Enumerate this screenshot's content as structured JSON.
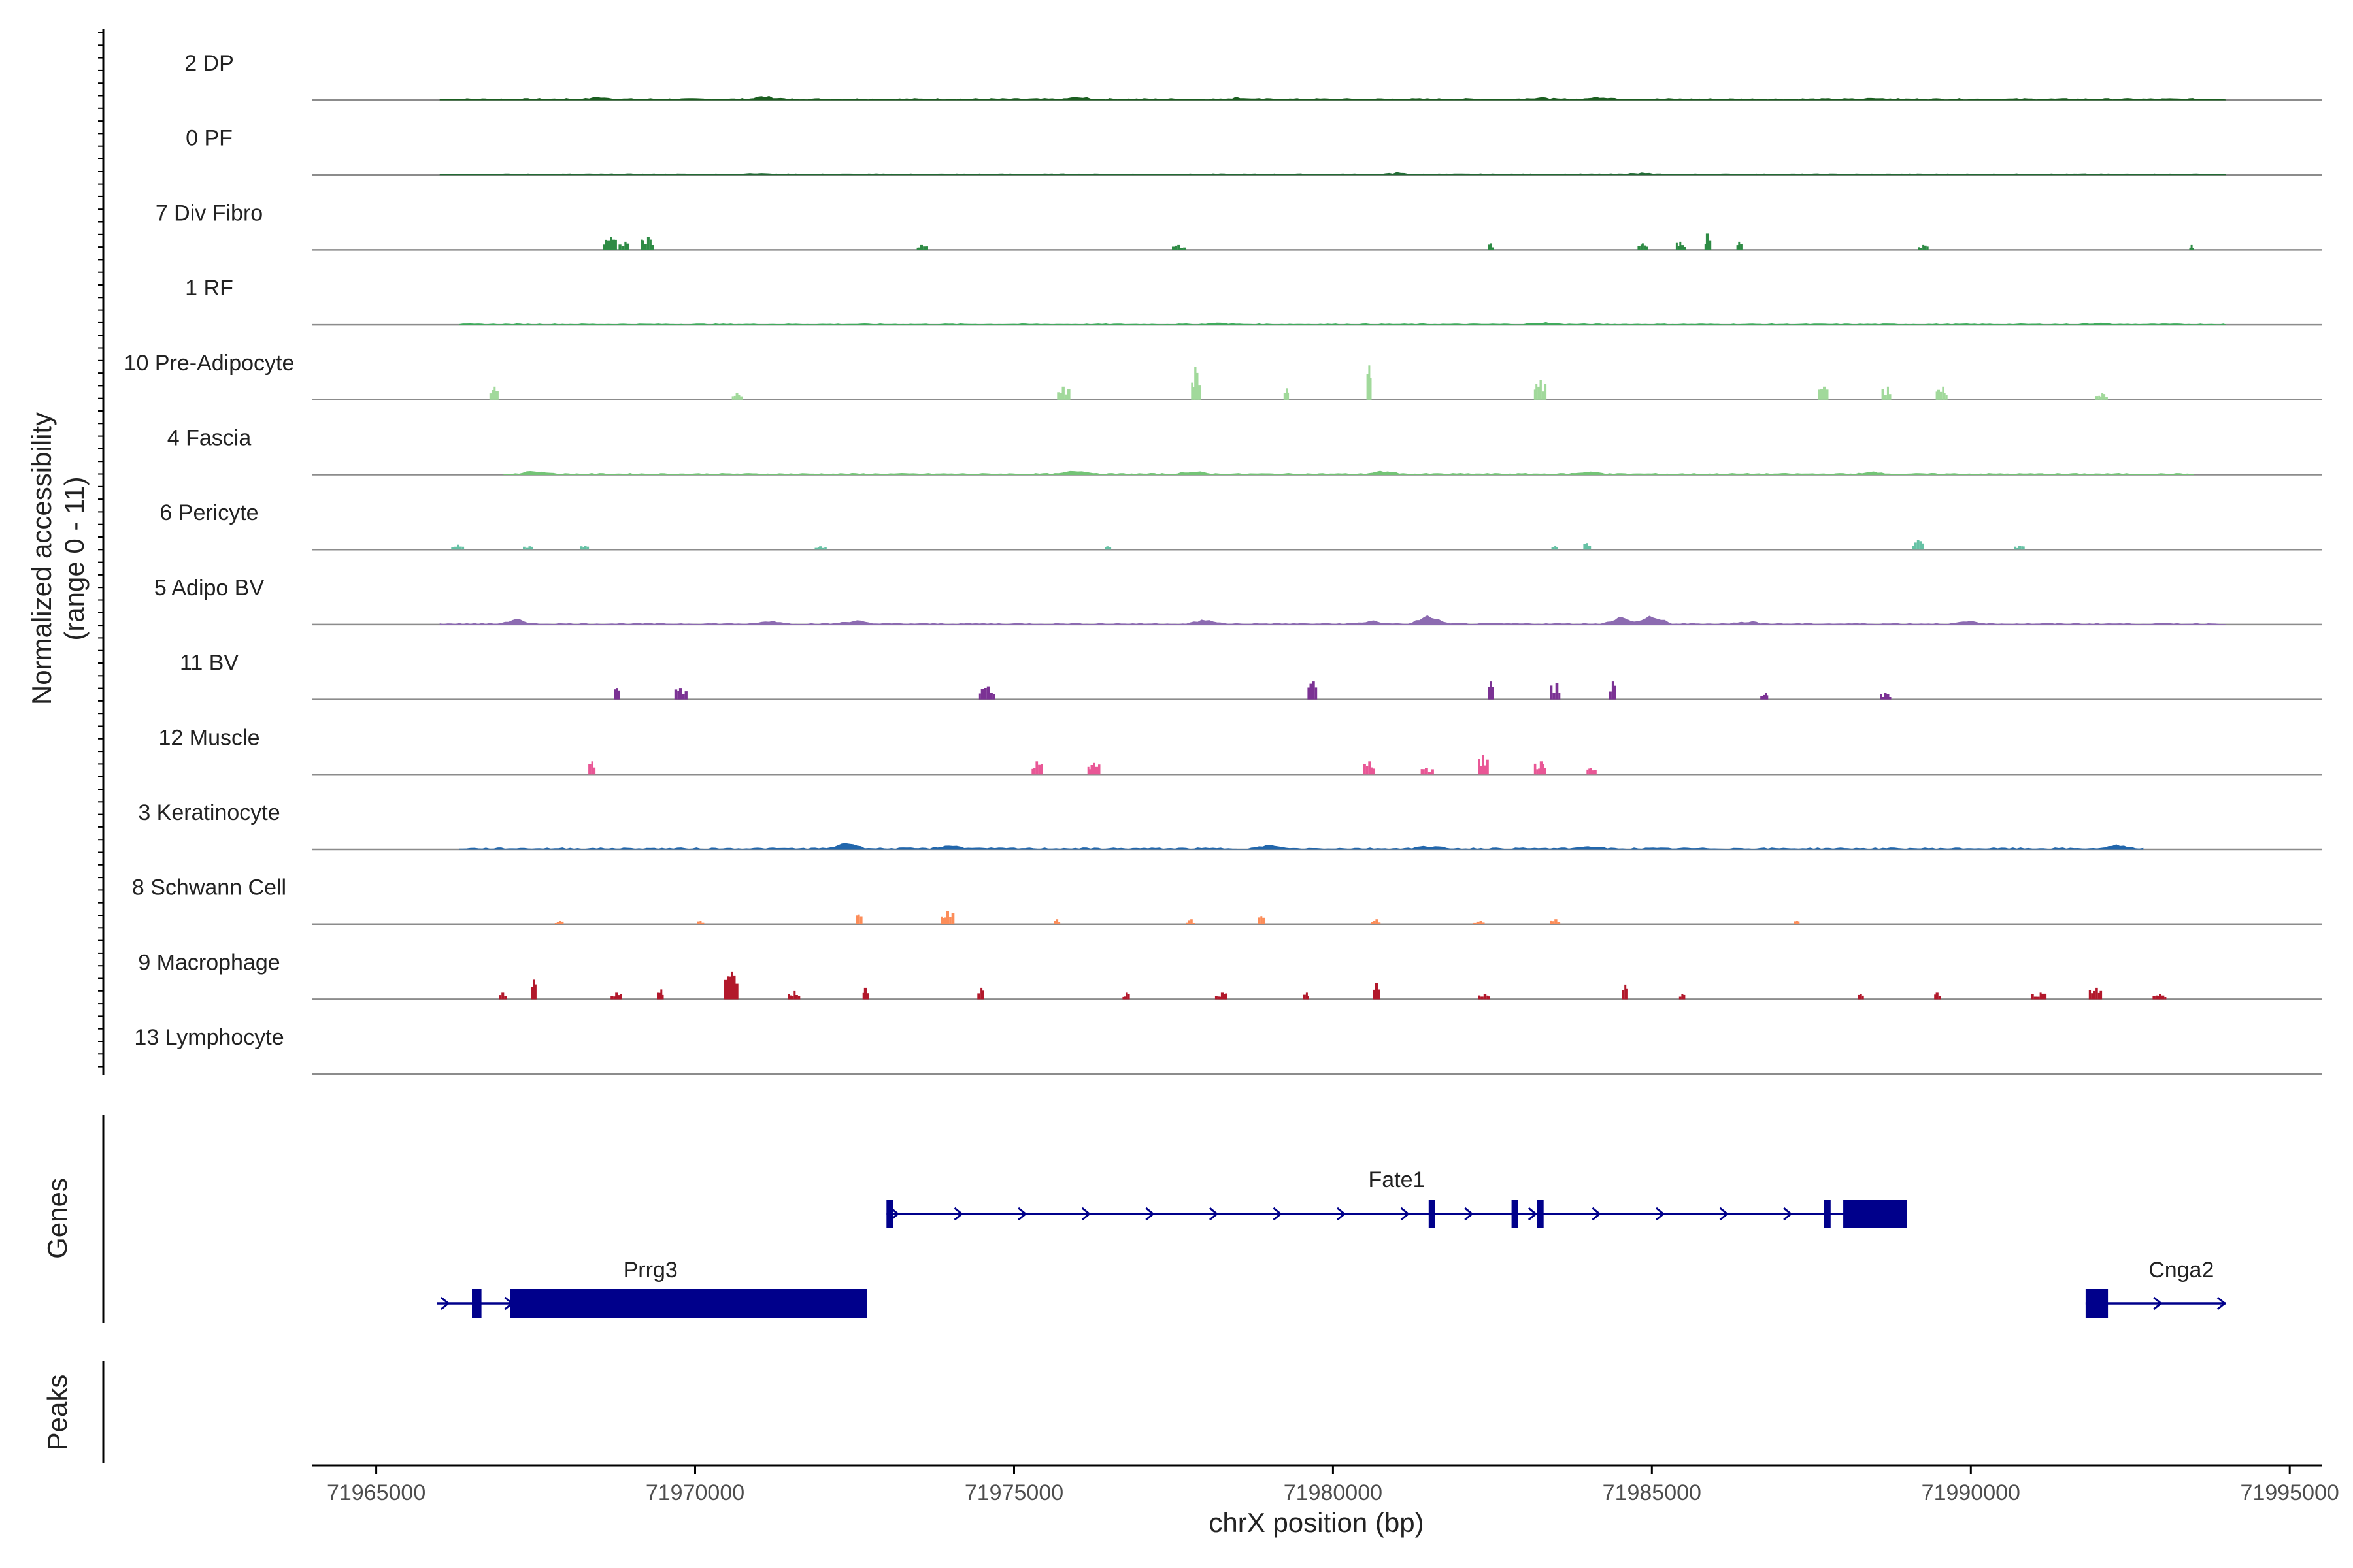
{
  "chart_data": {
    "type": "coverage",
    "y_axis_label_line1": "Normalized accessibility",
    "y_axis_label_line2": "(range 0 - 11)",
    "ylim": [
      0,
      11
    ],
    "x_axis_label": "chrX position (bp)",
    "xlim": [
      71964000,
      71995500
    ],
    "x_ticks": [
      71965000,
      71970000,
      71975000,
      71980000,
      71985000,
      71990000,
      71995000
    ],
    "x_tick_labels": [
      "71965000",
      "71970000",
      "71975000",
      "71980000",
      "71985000",
      "71990000",
      "71995000"
    ],
    "tracks": [
      {
        "name": "2 DP",
        "color": "#1b5e20",
        "style": "continuous",
        "from": 71966000,
        "to": 71994000,
        "level": 0.3,
        "peaks": [
          [
            71971100,
            0.8
          ],
          [
            71968500,
            0.5
          ],
          [
            71976000,
            0.5
          ],
          [
            71978500,
            0.5
          ],
          [
            71983200,
            0.5
          ],
          [
            71984200,
            0.7
          ],
          [
            71988500,
            0.4
          ]
        ]
      },
      {
        "name": "0 PF",
        "color": "#236b34",
        "style": "continuous",
        "from": 71966000,
        "to": 71994000,
        "level": 0.2,
        "peaks": [
          [
            71971000,
            0.4
          ],
          [
            71981000,
            0.35
          ],
          [
            71984800,
            0.35
          ]
        ]
      },
      {
        "name": "7 Div Fibro",
        "color": "#2e8b45",
        "style": "blocks",
        "peaks": [
          [
            71968700,
            4.0
          ],
          [
            71968900,
            2.5
          ],
          [
            71969300,
            4.0
          ],
          [
            71973600,
            1.5
          ],
          [
            71977600,
            1.5
          ],
          [
            71982500,
            2.0
          ],
          [
            71984900,
            2.0
          ],
          [
            71985500,
            2.5
          ],
          [
            71985900,
            5.0
          ],
          [
            71986400,
            2.5
          ],
          [
            71989300,
            1.5
          ],
          [
            71993500,
            1.5
          ]
        ]
      },
      {
        "name": "1 RF",
        "color": "#41ab5d",
        "style": "continuous",
        "from": 71966300,
        "to": 71994000,
        "level": 0.2,
        "peaks": [
          [
            71983300,
            0.5
          ],
          [
            71978200,
            0.4
          ],
          [
            71992000,
            0.35
          ]
        ]
      },
      {
        "name": "10 Pre-Adipocyte",
        "color": "#a1d99b",
        "style": "blocks",
        "peaks": [
          [
            71966900,
            4.0
          ],
          [
            71970700,
            2.0
          ],
          [
            71975800,
            4.0
          ],
          [
            71977900,
            10.0
          ],
          [
            71979300,
            3.5
          ],
          [
            71980600,
            10.5
          ],
          [
            71983300,
            6.0
          ],
          [
            71987700,
            4.0
          ],
          [
            71988700,
            4.0
          ],
          [
            71989600,
            4.0
          ],
          [
            71992100,
            2.0
          ]
        ]
      },
      {
        "name": "4 Fascia",
        "color": "#74c476",
        "style": "continuous",
        "from": 71967000,
        "to": 71993500,
        "level": 0.25,
        "peaks": [
          [
            71967500,
            1.0
          ],
          [
            71976000,
            1.2
          ],
          [
            71977800,
            0.8
          ],
          [
            71980800,
            0.8
          ],
          [
            71984000,
            0.7
          ],
          [
            71988500,
            0.6
          ]
        ]
      },
      {
        "name": "6 Pericyte",
        "color": "#66c2a5",
        "style": "blocks",
        "peaks": [
          [
            71966300,
            1.5
          ],
          [
            71967400,
            1.0
          ],
          [
            71968300,
            1.2
          ],
          [
            71972000,
            1.0
          ],
          [
            71976500,
            1.0
          ],
          [
            71983500,
            1.2
          ],
          [
            71984000,
            2.0
          ],
          [
            71989200,
            3.0
          ],
          [
            71990800,
            1.2
          ]
        ]
      },
      {
        "name": "5 Adipo BV",
        "color": "#8c6bb1",
        "style": "continuous",
        "from": 71966000,
        "to": 71994000,
        "level": 0.25,
        "peaks": [
          [
            71967200,
            1.2
          ],
          [
            71971200,
            0.9
          ],
          [
            71972500,
            1.0
          ],
          [
            71978000,
            1.2
          ],
          [
            71980600,
            0.8
          ],
          [
            71981500,
            2.5
          ],
          [
            71984500,
            2.0
          ],
          [
            71985000,
            2.5
          ],
          [
            71986500,
            0.8
          ],
          [
            71990000,
            0.8
          ]
        ]
      },
      {
        "name": "11 BV",
        "color": "#7b3294",
        "style": "blocks",
        "peaks": [
          [
            71968800,
            3.5
          ],
          [
            71969800,
            3.5
          ],
          [
            71974600,
            4.0
          ],
          [
            71979700,
            5.5
          ],
          [
            71982500,
            5.5
          ],
          [
            71983500,
            5.0
          ],
          [
            71984400,
            5.5
          ],
          [
            71986800,
            2.0
          ],
          [
            71988700,
            2.0
          ]
        ]
      },
      {
        "name": "12 Muscle",
        "color": "#e95796",
        "style": "blocks",
        "peaks": [
          [
            71968400,
            4.0
          ],
          [
            71975400,
            4.0
          ],
          [
            71976300,
            3.5
          ],
          [
            71980600,
            4.0
          ],
          [
            71981500,
            2.0
          ],
          [
            71982400,
            6.0
          ],
          [
            71983300,
            4.0
          ],
          [
            71984100,
            2.0
          ]
        ]
      },
      {
        "name": "3 Keratinocyte",
        "color": "#2166ac",
        "style": "continuous",
        "from": 71966300,
        "to": 71992700,
        "level": 0.3,
        "peaks": [
          [
            71972400,
            1.8
          ],
          [
            71974000,
            1.0
          ],
          [
            71979000,
            1.0
          ],
          [
            71981500,
            0.8
          ],
          [
            71984000,
            0.7
          ],
          [
            71992300,
            0.9
          ]
        ]
      },
      {
        "name": "8 Schwann Cell",
        "color": "#fc8d59",
        "style": "blocks",
        "peaks": [
          [
            71967900,
            1.0
          ],
          [
            71970100,
            1.0
          ],
          [
            71972600,
            3.0
          ],
          [
            71974000,
            4.0
          ],
          [
            71975700,
            1.5
          ],
          [
            71977800,
            1.5
          ],
          [
            71978900,
            2.5
          ],
          [
            71980700,
            1.5
          ],
          [
            71982300,
            1.0
          ],
          [
            71983500,
            1.5
          ],
          [
            71987300,
            1.0
          ]
        ]
      },
      {
        "name": "9 Macrophage",
        "color": "#b2182b",
        "style": "blocks",
        "peaks": [
          [
            71967000,
            2.0
          ],
          [
            71967500,
            6.0
          ],
          [
            71968800,
            2.0
          ],
          [
            71969500,
            3.0
          ],
          [
            71970600,
            8.5
          ],
          [
            71971600,
            2.5
          ],
          [
            71972700,
            3.5
          ],
          [
            71974500,
            3.5
          ],
          [
            71976800,
            2.0
          ],
          [
            71978300,
            2.0
          ],
          [
            71979600,
            2.0
          ],
          [
            71980700,
            5.0
          ],
          [
            71982400,
            1.5
          ],
          [
            71984600,
            4.5
          ],
          [
            71985500,
            1.5
          ],
          [
            71988300,
            1.5
          ],
          [
            71989500,
            2.0
          ],
          [
            71991100,
            2.0
          ],
          [
            71992000,
            3.5
          ],
          [
            71993000,
            1.5
          ]
        ]
      },
      {
        "name": "13 Lymphocyte",
        "color": "#666666",
        "style": "blocks",
        "peaks": []
      }
    ],
    "genes_label": "Genes",
    "genes": [
      {
        "name": "Fate1",
        "strand": "+",
        "start": 71973000,
        "end": 71989000,
        "exons": [
          [
            71973000,
            71973080
          ],
          [
            71981500,
            71981600
          ],
          [
            71982800,
            71982900
          ],
          [
            71983200,
            71983300
          ],
          [
            71987700,
            71987800
          ],
          [
            71988000,
            71989000
          ]
        ]
      },
      {
        "name": "Prrg3",
        "strand": "+",
        "start": 71965950,
        "end": 71972700,
        "exons": [
          [
            71966500,
            71966650
          ],
          [
            71967100,
            71972700
          ]
        ]
      },
      {
        "name": "Cnga2",
        "strand": "+",
        "start": 71991800,
        "end": 71994000,
        "exons": [
          [
            71991800,
            71992150
          ]
        ]
      }
    ],
    "peaks_label": "Peaks",
    "peak_regions": []
  }
}
